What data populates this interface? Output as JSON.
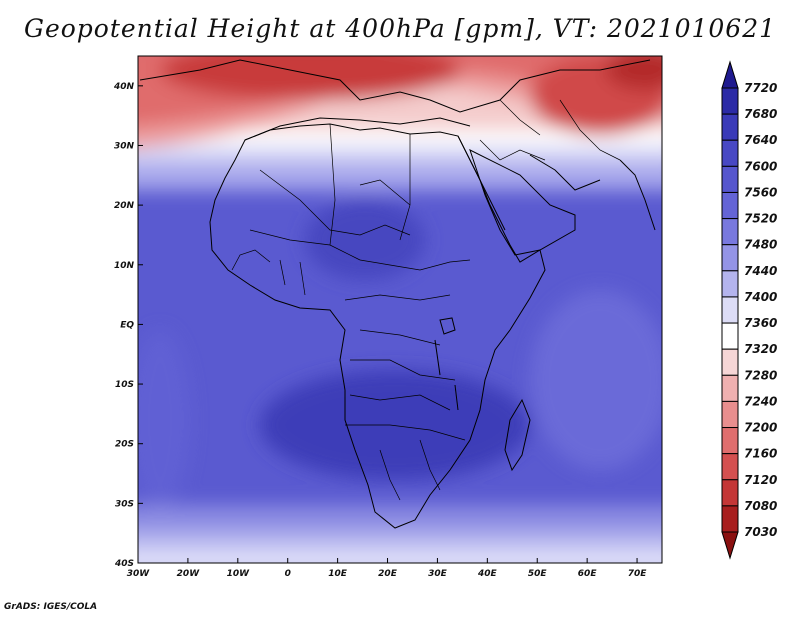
{
  "title": "Geopotential Height at 400hPa [gpm], VT: 2021010621",
  "credit": "GrADS: IGES/COLA",
  "map": {
    "region": "Africa",
    "lon_range": [
      -30,
      75
    ],
    "lat_range": [
      -40,
      45
    ],
    "lon_ticks": [
      {
        "value": -30,
        "label": "30W"
      },
      {
        "value": -20,
        "label": "20W"
      },
      {
        "value": -10,
        "label": "10W"
      },
      {
        "value": 0,
        "label": "0"
      },
      {
        "value": 10,
        "label": "10E"
      },
      {
        "value": 20,
        "label": "20E"
      },
      {
        "value": 30,
        "label": "30E"
      },
      {
        "value": 40,
        "label": "40E"
      },
      {
        "value": 50,
        "label": "50E"
      },
      {
        "value": 60,
        "label": "60E"
      },
      {
        "value": 70,
        "label": "70E"
      }
    ],
    "lat_ticks": [
      {
        "value": 40,
        "label": "40N"
      },
      {
        "value": 30,
        "label": "30N"
      },
      {
        "value": 20,
        "label": "20N"
      },
      {
        "value": 10,
        "label": "10N"
      },
      {
        "value": 0,
        "label": "EQ"
      },
      {
        "value": -10,
        "label": "10S"
      },
      {
        "value": -20,
        "label": "20S"
      },
      {
        "value": -30,
        "label": "30S"
      },
      {
        "value": -40,
        "label": "40S"
      }
    ]
  },
  "colorbar": {
    "levels": [
      "7720",
      "7680",
      "7640",
      "7600",
      "7560",
      "7520",
      "7480",
      "7440",
      "7400",
      "7360",
      "7320",
      "7280",
      "7240",
      "7200",
      "7160",
      "7120",
      "7080",
      "7030"
    ],
    "colors": [
      "#1f1a8f",
      "#2b2aa6",
      "#3a3ab8",
      "#4848c4",
      "#5656ce",
      "#6464d6",
      "#7878de",
      "#9494e6",
      "#b4b4ee",
      "#dcdcf6",
      "#ffffff",
      "#f6d6d6",
      "#efb0b0",
      "#e88e8e",
      "#e06e6e",
      "#d45050",
      "#c43636",
      "#a81e1e",
      "#8a1010"
    ]
  },
  "colors": {
    "border": "#000000",
    "background": "#ffffff"
  }
}
